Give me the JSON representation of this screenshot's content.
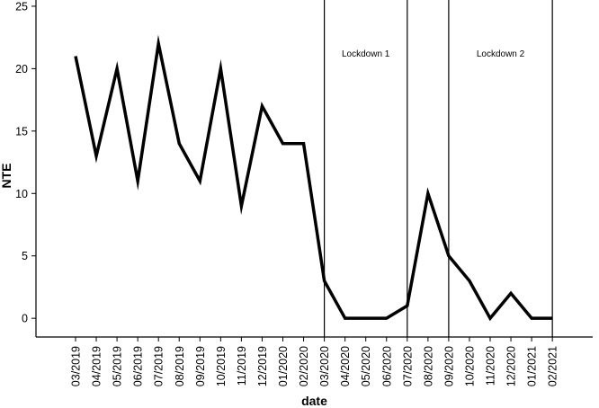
{
  "chart_data": {
    "type": "line",
    "title": "",
    "xlabel": "date",
    "ylabel": "NTE",
    "ylim": [
      -1.5,
      25.5
    ],
    "yticks": [
      0,
      5,
      10,
      15,
      20,
      25
    ],
    "x_ticks": [
      "03/2019",
      "04/2019",
      "05/2019",
      "06/2019",
      "07/2019",
      "08/2019",
      "09/2019",
      "10/2019",
      "11/2019",
      "12/2019",
      "01/2020",
      "02/2020",
      "03/2020",
      "04/2020",
      "05/2020",
      "06/2020",
      "07/2020",
      "08/2020",
      "09/2020",
      "10/2020",
      "11/2020",
      "12/2020",
      "01/2021",
      "02/2021"
    ],
    "values": [
      21,
      13,
      20,
      11,
      22,
      14,
      11,
      20,
      9,
      17,
      14,
      14,
      3,
      0,
      0,
      0,
      1,
      10,
      5,
      3,
      0,
      2,
      0,
      0
    ],
    "color": "#000000",
    "grid": false,
    "reference_lines": [
      {
        "at": "03/2020"
      },
      {
        "at": "07/2020"
      },
      {
        "at": "09/2020"
      },
      {
        "at": "02/2021"
      }
    ],
    "annotations": [
      {
        "text": "Lockdown 1",
        "between": [
          "03/2020",
          "07/2020"
        ]
      },
      {
        "text": "Lockdown 2",
        "between": [
          "09/2020",
          "02/2021"
        ]
      }
    ]
  }
}
